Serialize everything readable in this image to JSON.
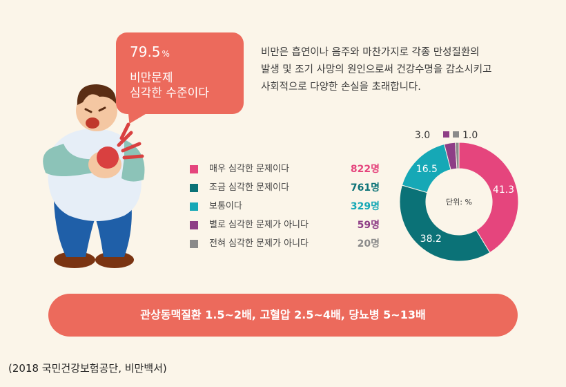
{
  "bubble": {
    "percent": "79.5",
    "percent_unit": "%",
    "line1": "비만문제",
    "line2": "심각한 수준이다"
  },
  "description": {
    "line1": "비만은 흡연이나 음주와 마찬가지로 각종 만성질환의",
    "line2": "발생 및 조기 사망의 원인으로써 건강수명을 감소시키고",
    "line3": "사회적으로 다양한 손실을 초래합니다."
  },
  "chart_data": {
    "type": "pie",
    "center_label": "단위: %",
    "categories": [
      "매우 심각한 문제이다",
      "조금 심각한 문제이다",
      "보통이다",
      "별로 심각한 문제가 아니다",
      "전혀 심각한 문제가 아니다"
    ],
    "values": [
      41.3,
      38.2,
      16.5,
      3.0,
      1.0
    ],
    "value_labels": [
      "41.3",
      "38.2",
      "16.5",
      "3.0",
      "1.0"
    ],
    "counts": [
      "822명",
      "761명",
      "329명",
      "59명",
      "20명"
    ],
    "colors": [
      "#e5457d",
      "#0b7277",
      "#16a8b6",
      "#8e3e86",
      "#8a8a8a"
    ]
  },
  "banner": {
    "text": "관상동맥질환 1.5~2배, 고혈압 2.5~4배, 당뇨병 5~13배"
  },
  "source": {
    "text": "(2018 국민건강보험공단, 비만백서)"
  }
}
